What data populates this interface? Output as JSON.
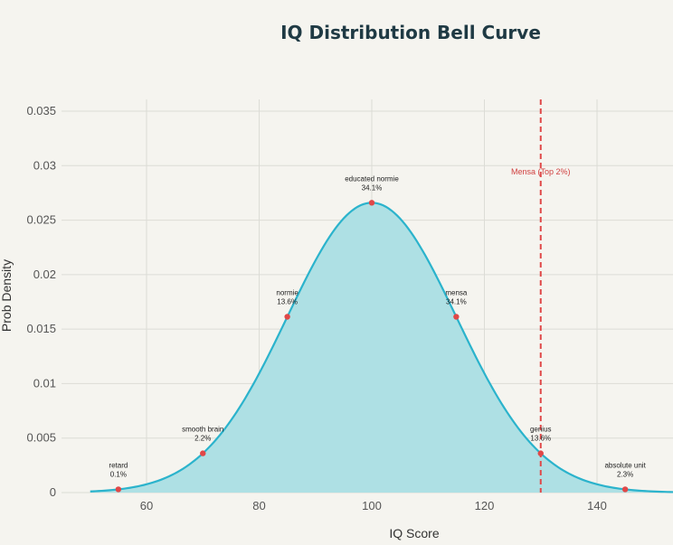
{
  "chart_data": {
    "type": "area",
    "title": "IQ Distribution Bell Curve",
    "xlabel": "IQ Score",
    "ylabel": "Prob Density",
    "xlim": [
      50,
      155
    ],
    "ylim": [
      0,
      0.035
    ],
    "x_ticks": [
      60,
      80,
      100,
      120,
      140
    ],
    "y_ticks": [
      0,
      0.005,
      0.01,
      0.015,
      0.02,
      0.025,
      0.03,
      0.035
    ],
    "y_tick_labels": [
      "0",
      "0.005",
      "0.01",
      "0.015",
      "0.02",
      "0.025",
      "0.03",
      "0.035"
    ],
    "distribution": {
      "mean": 100,
      "sd": 15,
      "x_start": 50,
      "x_end": 155
    },
    "grid": true,
    "curve_color": "#2bb3cc",
    "fill_color": "#aee0e4",
    "marker_color": "#e04848",
    "reference_line": {
      "x": 130,
      "label": "Mensa (Top 2%)",
      "color": "#e04848"
    },
    "annotations": [
      {
        "name": "retard",
        "pct": "0.1%",
        "x": 55
      },
      {
        "name": "smooth brain",
        "pct": "2.2%",
        "x": 70
      },
      {
        "name": "normie",
        "pct": "13.6%",
        "x": 85
      },
      {
        "name": "educated normie",
        "pct": "34.1%",
        "x": 100
      },
      {
        "name": "mensa",
        "pct": "34.1%",
        "x": 115
      },
      {
        "name": "genius",
        "pct": "13.6%",
        "x": 130
      },
      {
        "name": "absolute unit",
        "pct": "2.3%",
        "x": 145
      }
    ]
  }
}
